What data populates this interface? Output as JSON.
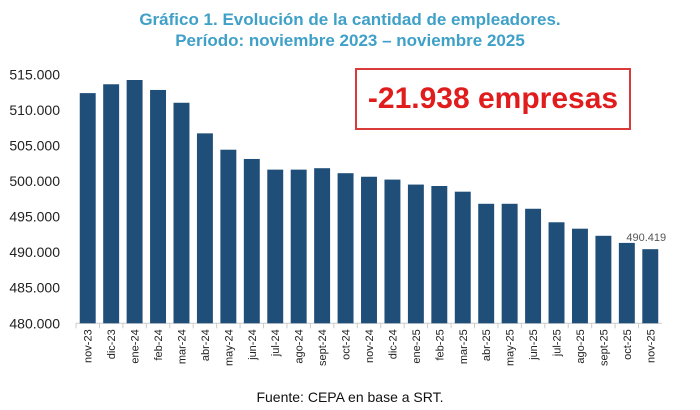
{
  "chart_data": {
    "type": "bar",
    "title": "Gráfico 1. Evolución de la cantidad de empleadores.",
    "subtitle": "Período: noviembre 2023 – noviembre 2025",
    "categories": [
      "nov-23",
      "dic-23",
      "ene-24",
      "feb-24",
      "mar-24",
      "abr-24",
      "may-24",
      "jun-24",
      "jul-24",
      "ago-24",
      "sept-24",
      "oct-24",
      "nov-24",
      "dic-24",
      "ene-25",
      "feb-25",
      "mar-25",
      "abr-25",
      "may-25",
      "jun-25",
      "jul-25",
      "ago-25",
      "sept-25",
      "oct-25",
      "nov-25"
    ],
    "values": [
      512357,
      513600,
      514200,
      512800,
      511000,
      506700,
      504400,
      503100,
      501600,
      501600,
      501800,
      501100,
      500600,
      500200,
      499500,
      499300,
      498500,
      496800,
      496800,
      496100,
      494200,
      493300,
      492300,
      491300,
      490419
    ],
    "yticks": [
      "480.000",
      "485.000",
      "490.000",
      "495.000",
      "500.000",
      "505.000",
      "510.000",
      "515.000"
    ],
    "ylim": [
      480000,
      515000
    ],
    "last_label": "490.419",
    "annotation": "-21.938 empresas",
    "bar_color": "#1f4e79",
    "xlabel": "",
    "ylabel": "",
    "grid": false
  },
  "source": "Fuente: CEPA en base a SRT."
}
